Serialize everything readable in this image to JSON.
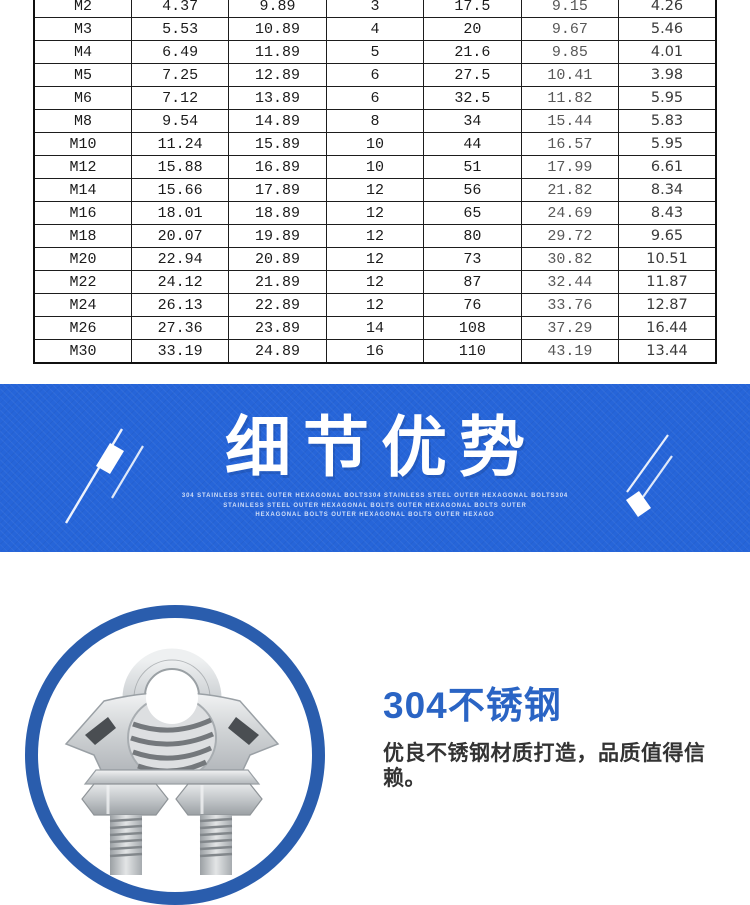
{
  "spec_table": {
    "rows": [
      [
        "M2",
        "4.37",
        "9.89",
        "3",
        "17.5",
        "9.15",
        "4.26"
      ],
      [
        "M3",
        "5.53",
        "10.89",
        "4",
        "20",
        "9.67",
        "5.46"
      ],
      [
        "M4",
        "6.49",
        "11.89",
        "5",
        "21.6",
        "9.85",
        "4.01"
      ],
      [
        "M5",
        "7.25",
        "12.89",
        "6",
        "27.5",
        "10.41",
        "3.98"
      ],
      [
        "M6",
        "7.12",
        "13.89",
        "6",
        "32.5",
        "11.82",
        "5.95"
      ],
      [
        "M8",
        "9.54",
        "14.89",
        "8",
        "34",
        "15.44",
        "5.83"
      ],
      [
        "M10",
        "11.24",
        "15.89",
        "10",
        "44",
        "16.57",
        "5.95"
      ],
      [
        "M12",
        "15.88",
        "16.89",
        "10",
        "51",
        "17.99",
        "6.61"
      ],
      [
        "M14",
        "15.66",
        "17.89",
        "12",
        "56",
        "21.82",
        "8.34"
      ],
      [
        "M16",
        "18.01",
        "18.89",
        "12",
        "65",
        "24.69",
        "8.43"
      ],
      [
        "M18",
        "20.07",
        "19.89",
        "12",
        "80",
        "29.72",
        "9.65"
      ],
      [
        "M20",
        "22.94",
        "20.89",
        "12",
        "73",
        "30.82",
        "10.51"
      ],
      [
        "M22",
        "24.12",
        "21.89",
        "12",
        "87",
        "32.44",
        "11.87"
      ],
      [
        "M24",
        "26.13",
        "22.89",
        "12",
        "76",
        "33.76",
        "12.87"
      ],
      [
        "M26",
        "27.36",
        "23.89",
        "14",
        "108",
        "37.29",
        "16.44"
      ],
      [
        "M30",
        "33.19",
        "24.89",
        "16",
        "110",
        "43.19",
        "13.44"
      ]
    ]
  },
  "banner": {
    "title": "细节优势",
    "subtitle_lines": [
      "304 STAINLESS STEEL OUTER HEXAGONAL BOLTS304 STAINLESS STEEL OUTER HEXAGONAL BOLTS304",
      "STAINLESS STEEL OUTER HEXAGONAL BOLTS OUTER HEXAGONAL BOLTS OUTER",
      "HEXAGONAL BOLTS OUTER HEXAGONAL BOLTS OUTER HEXAGO"
    ],
    "bg_color": "#2665d9"
  },
  "feature": {
    "heading": "304不锈钢",
    "description": "优良不锈钢材质打造，品质值得信赖。",
    "heading_color": "#2a64c4",
    "ring_color": "#2a5dad"
  }
}
